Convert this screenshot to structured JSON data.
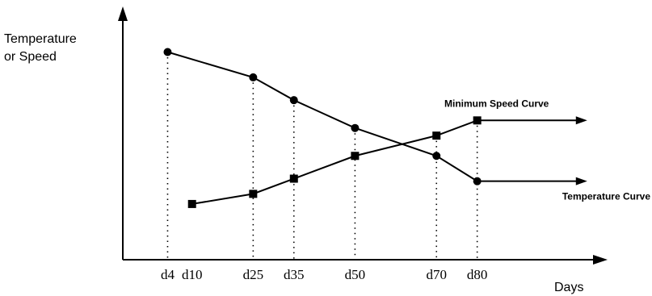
{
  "chart_data": {
    "type": "line",
    "ylabel_lines": [
      "Temperature",
      "or Speed"
    ],
    "xlabel": "Days",
    "x_ticks": [
      {
        "label": "d4",
        "x": 4
      },
      {
        "label": "d10",
        "x": 10
      },
      {
        "label": "d25",
        "x": 25
      },
      {
        "label": "d35",
        "x": 35
      },
      {
        "label": "d50",
        "x": 50
      },
      {
        "label": "d70",
        "x": 70
      },
      {
        "label": "d80",
        "x": 80
      }
    ],
    "xlim": [
      -7,
      112
    ],
    "ylim": [
      0,
      10
    ],
    "grid": false,
    "series": [
      {
        "name": "Temperature Curve",
        "marker": "circle",
        "arrow_to_x": 107,
        "points": [
          {
            "x": 4,
            "y": 8.2
          },
          {
            "x": 25,
            "y": 7.2
          },
          {
            "x": 35,
            "y": 6.3
          },
          {
            "x": 50,
            "y": 5.2
          },
          {
            "x": 70,
            "y": 4.1
          },
          {
            "x": 80,
            "y": 3.1
          }
        ]
      },
      {
        "name": "Minimum Speed Curve",
        "marker": "square",
        "arrow_to_x": 107,
        "points": [
          {
            "x": 10,
            "y": 2.2
          },
          {
            "x": 25,
            "y": 2.6
          },
          {
            "x": 35,
            "y": 3.2
          },
          {
            "x": 50,
            "y": 4.1
          },
          {
            "x": 70,
            "y": 4.9
          },
          {
            "x": 80,
            "y": 5.5
          }
        ]
      }
    ],
    "dotted_drop_lines_at_x": [
      4,
      25,
      35,
      50,
      70,
      80
    ]
  }
}
